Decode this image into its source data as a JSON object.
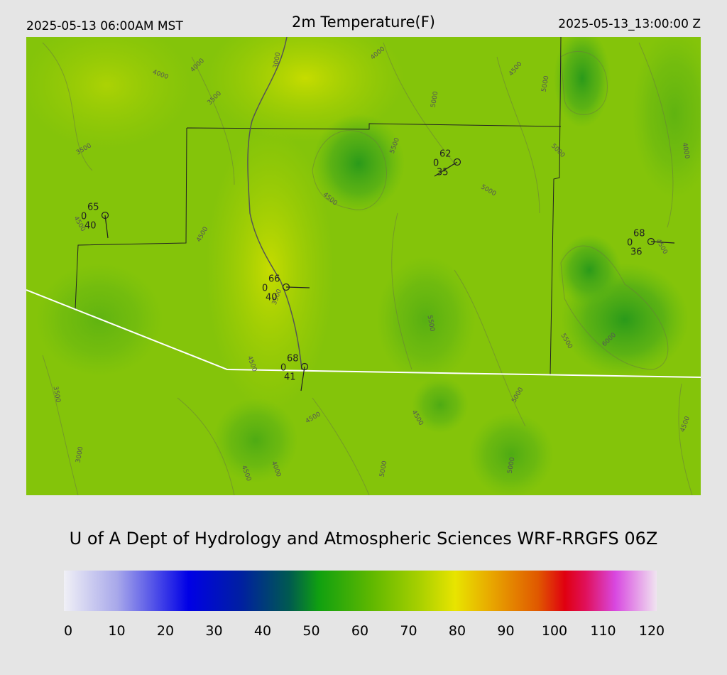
{
  "header": {
    "left": "2025-05-13 06:00AM MST",
    "title": "2m Temperature(F)",
    "right": "2025-05-13_13:00:00 Z"
  },
  "map": {
    "contour_labels": [
      "4000",
      "4000",
      "3000",
      "3500",
      "3500",
      "4000",
      "4500",
      "5000",
      "5000",
      "5500",
      "5000",
      "5000",
      "4500",
      "4500",
      "4000",
      "4500",
      "3500",
      "5500",
      "5500",
      "6000",
      "4500",
      "4500",
      "3500",
      "4500",
      "4500",
      "5000",
      "3000",
      "4000",
      "4500",
      "5000",
      "5000",
      "4500"
    ],
    "stations": [
      {
        "temp": 65,
        "dew": 40,
        "wind": 0
      },
      {
        "temp": 62,
        "dew": 35,
        "wind": 0
      },
      {
        "temp": 68,
        "dew": 36,
        "wind": 0
      },
      {
        "temp": 66,
        "dew": 40,
        "wind": 0
      },
      {
        "temp": 68,
        "dew": 41,
        "wind": 0
      }
    ]
  },
  "credit": "U of A Dept of Hydrology and Atmospheric Sciences WRF-RRGFS 06Z",
  "colorbar": {
    "range": [
      0,
      120
    ],
    "ticks": [
      0,
      10,
      20,
      30,
      40,
      50,
      60,
      70,
      80,
      90,
      100,
      110,
      120
    ]
  }
}
